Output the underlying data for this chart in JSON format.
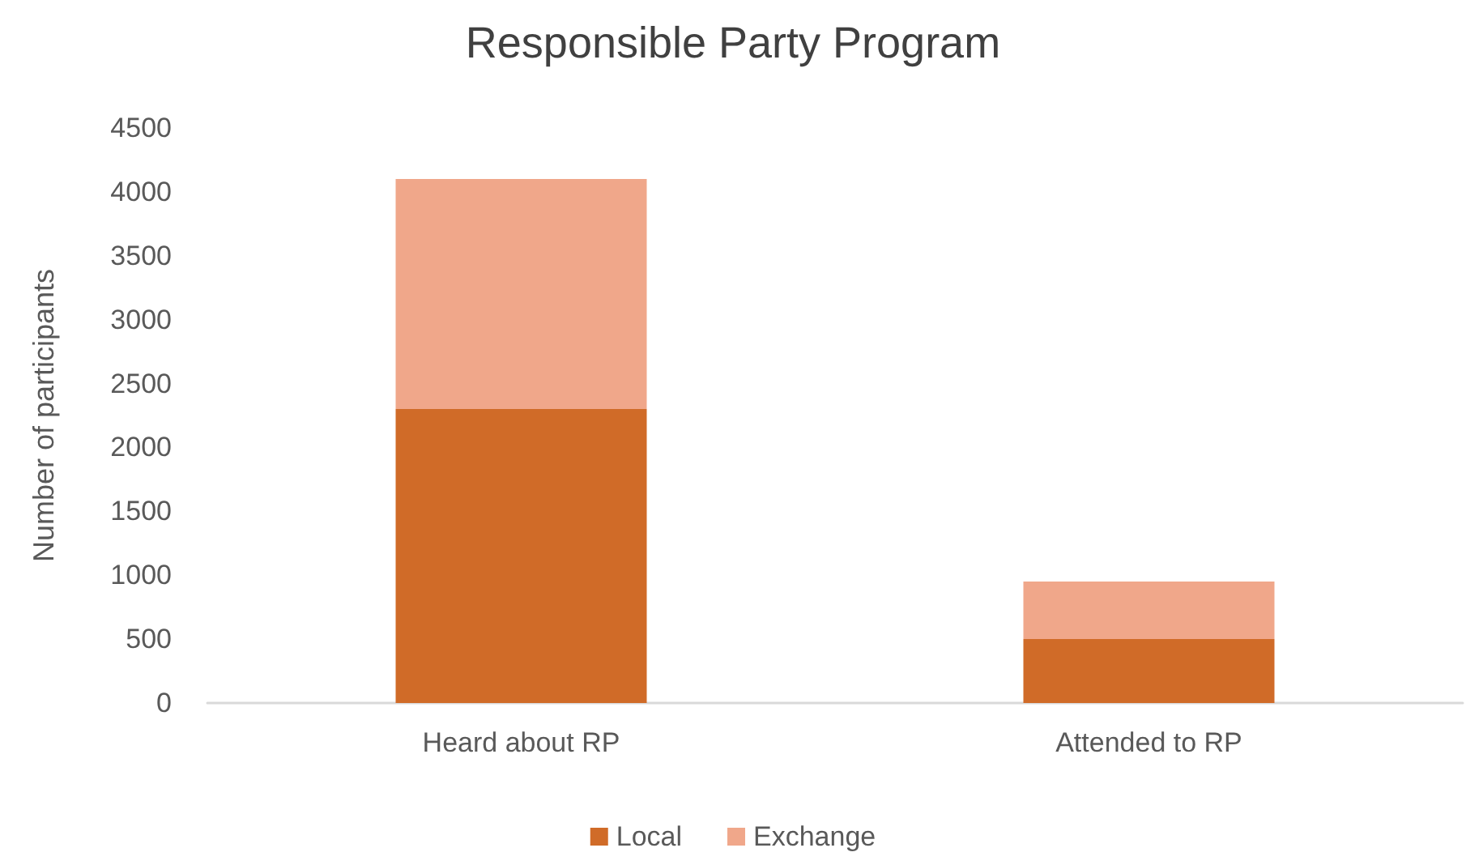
{
  "chart_data": {
    "type": "bar",
    "title": "Responsible Party Program",
    "ylabel": "Number of participants",
    "categories": [
      "Heard about RP",
      "Attended to RP"
    ],
    "series": [
      {
        "name": "Local",
        "color": "#d06b28",
        "values": [
          2300,
          500
        ]
      },
      {
        "name": "Exchange",
        "color": "#f0a78a",
        "values": [
          1800,
          450
        ]
      }
    ],
    "stacked": true,
    "ylim": [
      0,
      4500
    ],
    "yticks": [
      0,
      500,
      1000,
      1500,
      2000,
      2500,
      3000,
      3500,
      4000,
      4500
    ],
    "grid": false,
    "legend": "bottom"
  }
}
